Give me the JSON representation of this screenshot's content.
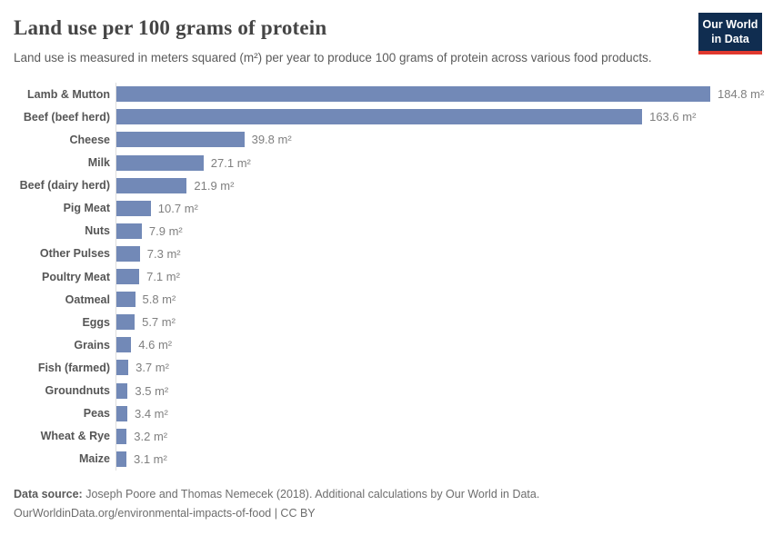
{
  "header": {
    "title": "Land use per 100 grams of protein",
    "subtitle": "Land use is measured in meters squared (m²) per year to produce 100 grams of protein across various food products.",
    "logo": {
      "line1": "Our World",
      "line2": "in Data",
      "bg_color": "#102d50",
      "accent_color": "#e0392f"
    }
  },
  "chart_data": {
    "type": "bar",
    "orientation": "horizontal",
    "title": "Land use per 100 grams of protein",
    "categories": [
      "Lamb & Mutton",
      "Beef (beef herd)",
      "Cheese",
      "Milk",
      "Beef (dairy herd)",
      "Pig Meat",
      "Nuts",
      "Other Pulses",
      "Poultry Meat",
      "Oatmeal",
      "Eggs",
      "Grains",
      "Fish (farmed)",
      "Groundnuts",
      "Peas",
      "Wheat & Rye",
      "Maize"
    ],
    "values": [
      184.8,
      163.6,
      39.8,
      27.1,
      21.9,
      10.7,
      7.9,
      7.3,
      7.1,
      5.8,
      5.7,
      4.6,
      3.7,
      3.5,
      3.4,
      3.2,
      3.1
    ],
    "unit": "m²",
    "xlabel": "",
    "ylabel": "",
    "xlim": [
      0,
      190
    ],
    "grid": false,
    "legend": "none",
    "bar_color": "#7289b7",
    "axis_line_color": "#dedede"
  },
  "footer": {
    "data_source_label": "Data source:",
    "data_source_text": "Joseph Poore and Thomas Nemecek (2018). Additional calculations by Our World in Data.",
    "link_line": "OurWorldinData.org/environmental-impacts-of-food | CC BY"
  }
}
